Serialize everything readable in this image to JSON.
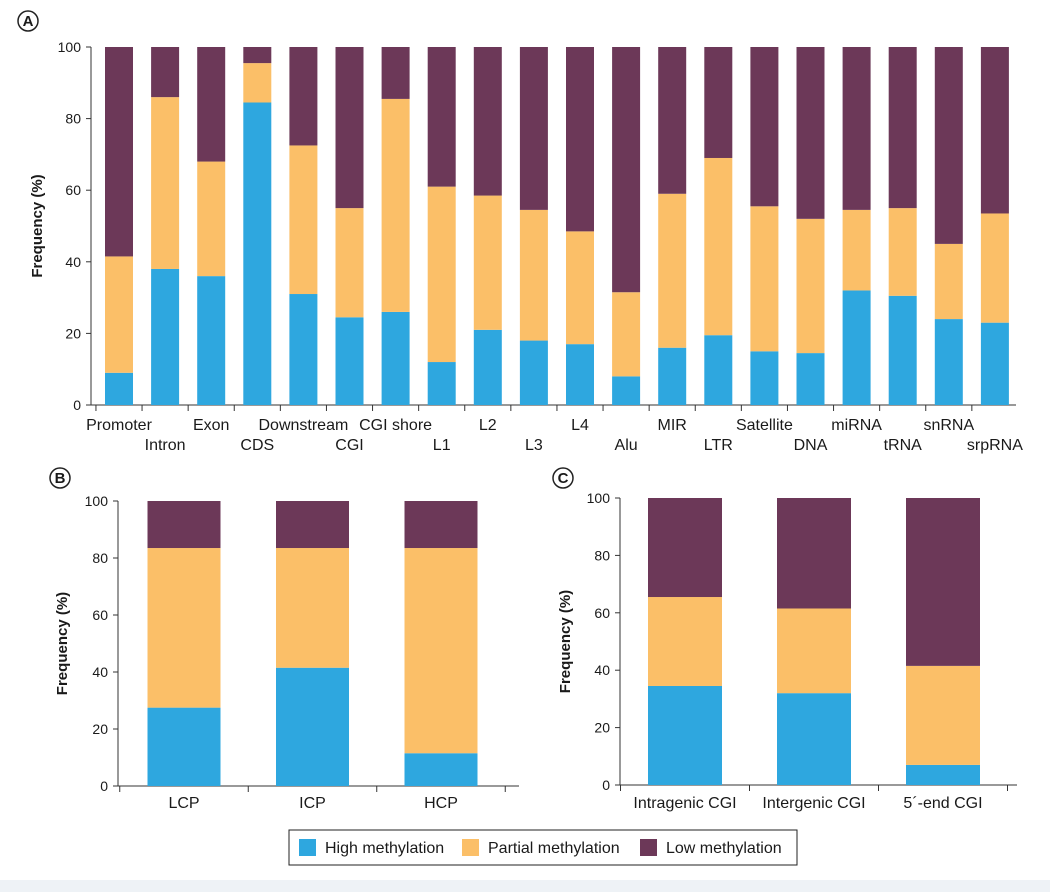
{
  "colors": {
    "high": "#2ea7df",
    "partial": "#fbbf68",
    "low": "#6c3858"
  },
  "legend": {
    "high_label": "High methylation",
    "partial_label": "Partial methylation",
    "low_label": "Low methylation"
  },
  "chart_data": [
    {
      "panel": "A",
      "type": "bar",
      "stacked": true,
      "ylabel": "Frequency (%)",
      "ylim": [
        0,
        100
      ],
      "yticks": [
        0,
        20,
        40,
        60,
        80,
        100
      ],
      "categories": [
        "Promoter",
        "Intron",
        "Exon",
        "CDS",
        "Downstream",
        "CGI",
        "CGI shore",
        "L1",
        "L2",
        "L3",
        "L4",
        "Alu",
        "MIR",
        "LTR",
        "Satellite",
        "DNA",
        "miRNA",
        "tRNA",
        "snRNA",
        "srpRNA"
      ],
      "series": [
        {
          "name": "High methylation",
          "values": [
            9,
            38,
            36,
            84.5,
            31,
            24.5,
            26,
            12,
            21,
            18,
            17,
            8,
            16,
            19.5,
            15,
            14.5,
            32,
            30.5,
            24,
            23
          ]
        },
        {
          "name": "Partial methylation",
          "values": [
            32.5,
            48,
            32,
            11,
            41.5,
            30.5,
            59.5,
            49,
            37.5,
            36.5,
            31.5,
            23.5,
            43,
            49.5,
            40.5,
            37.5,
            22.5,
            24.5,
            21,
            30.5
          ]
        },
        {
          "name": "Low methylation",
          "values": [
            58.5,
            14,
            32,
            4.5,
            27.5,
            45,
            14.5,
            39,
            41.5,
            45.5,
            51.5,
            68.5,
            41,
            31,
            44.5,
            48,
            45.5,
            45,
            55,
            46.5
          ]
        }
      ]
    },
    {
      "panel": "B",
      "type": "bar",
      "stacked": true,
      "ylabel": "Frequency (%)",
      "ylim": [
        0,
        100
      ],
      "yticks": [
        0,
        20,
        40,
        60,
        80,
        100
      ],
      "categories": [
        "LCP",
        "ICP",
        "HCP"
      ],
      "series": [
        {
          "name": "High methylation",
          "values": [
            27.5,
            41.5,
            11.5
          ]
        },
        {
          "name": "Partial methylation",
          "values": [
            56,
            42,
            72
          ]
        },
        {
          "name": "Low methylation",
          "values": [
            16.5,
            16.5,
            16.5
          ]
        }
      ]
    },
    {
      "panel": "C",
      "type": "bar",
      "stacked": true,
      "ylabel": "Frequency (%)",
      "ylim": [
        0,
        100
      ],
      "yticks": [
        0,
        20,
        40,
        60,
        80,
        100
      ],
      "categories": [
        "Intragenic CGI",
        "Intergenic CGI",
        "5´-end CGI"
      ],
      "series": [
        {
          "name": "High methylation",
          "values": [
            34.5,
            32,
            7
          ]
        },
        {
          "name": "Partial methylation",
          "values": [
            31,
            29.5,
            34.5
          ]
        },
        {
          "name": "Low methylation",
          "values": [
            34.5,
            38.5,
            58.5
          ]
        }
      ]
    }
  ]
}
